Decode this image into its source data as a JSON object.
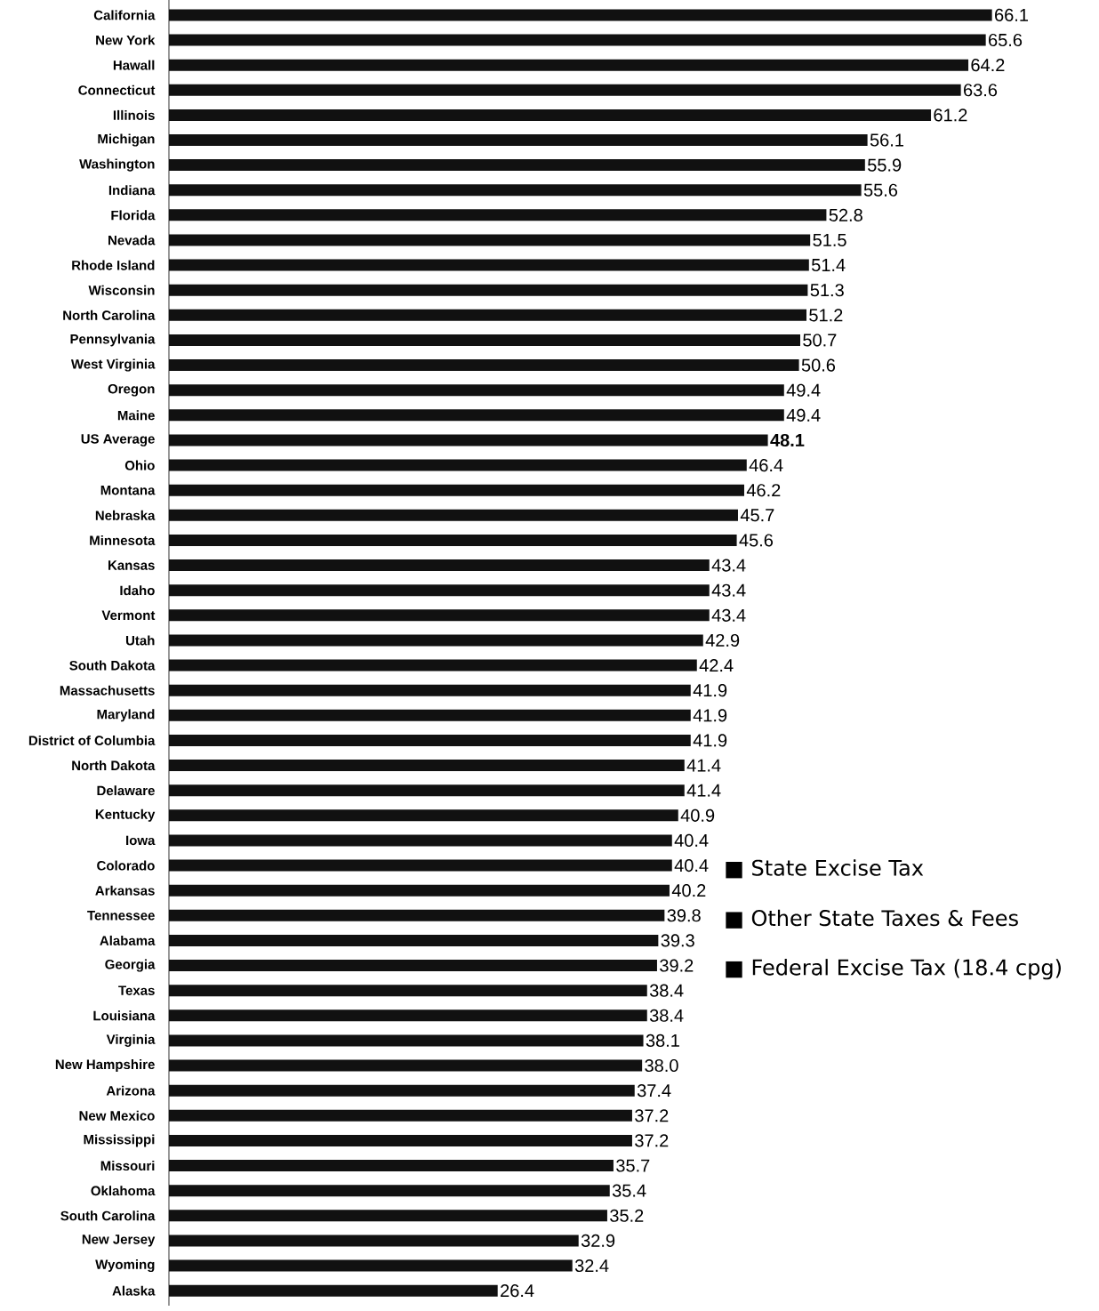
{
  "chart_data": {
    "type": "bar",
    "orientation": "horizontal",
    "color": "#111111",
    "categories": [
      "California",
      "New York",
      "Hawall",
      "Connecticut",
      "Illinois",
      "Michigan",
      "Washington",
      "Indiana",
      "Florida",
      "Nevada",
      "Rhode Island",
      "Wisconsin",
      "North Carolina",
      "Pennsylvania",
      "West Virginia",
      "Oregon",
      "Maine",
      "US Average",
      "Ohio",
      "Montana",
      "Nebraska",
      "Minnesota",
      "Kansas",
      "Idaho",
      "Vermont",
      "Utah",
      "South Dakota",
      "Massachusetts",
      "Maryland",
      "District of Columbia",
      "North Dakota",
      "Delaware",
      "Kentucky",
      "Iowa",
      "Colorado",
      "Arkansas",
      "Tennessee",
      "Alabama",
      "Georgia",
      "Texas",
      "Louisiana",
      "Virginia",
      "New Hampshire",
      "Arizona",
      "New Mexico",
      "Mississippi",
      "Missouri",
      "Oklahoma",
      "South Carolina",
      "New Jersey",
      "Wyoming",
      "Alaska"
    ],
    "values": [
      66.1,
      65.6,
      64.2,
      63.6,
      61.2,
      56.1,
      55.9,
      55.6,
      52.8,
      51.5,
      51.4,
      51.3,
      51.2,
      50.7,
      50.6,
      49.4,
      49.4,
      48.1,
      46.4,
      46.2,
      45.7,
      45.6,
      43.4,
      43.4,
      43.4,
      42.9,
      42.4,
      41.9,
      41.9,
      41.9,
      41.4,
      41.4,
      40.9,
      40.4,
      40.4,
      40.2,
      39.8,
      39.3,
      39.2,
      38.4,
      38.4,
      38.1,
      38.0,
      37.4,
      37.2,
      37.2,
      35.7,
      35.4,
      35.2,
      32.9,
      32.4,
      26.4
    ],
    "value_labels": [
      "66.1",
      "65.6",
      "64.2",
      "63.6",
      "61.2",
      "56.1",
      "55.9",
      "55.6",
      "52.8",
      "51.5",
      "51.4",
      "51.3",
      "51.2",
      "50.7",
      "50.6",
      "49.4",
      "49.4",
      "**48.1**",
      "46.4",
      "46.2",
      "45.7",
      "45.6",
      "43.4",
      "43.4",
      "43.4",
      "42.9",
      "42.4",
      "41.9",
      "41.9",
      "41.9",
      "41.4",
      "41.4",
      "40.9",
      "40.4",
      "40.4",
      "40.2",
      "39.8",
      "39.3",
      "39.2",
      "38.4",
      "38.4",
      "38.1",
      "38.0",
      "37.4",
      "37.2",
      "37.2",
      "35.7",
      "35.4",
      "35.2",
      "32.9",
      "32.4",
      "26.4"
    ],
    "annotations": [
      "■ State Excise Tax",
      "■ Other State Taxes & Fees",
      "■ Federal Excise Tax (18.4 cpg)"
    ]
  }
}
